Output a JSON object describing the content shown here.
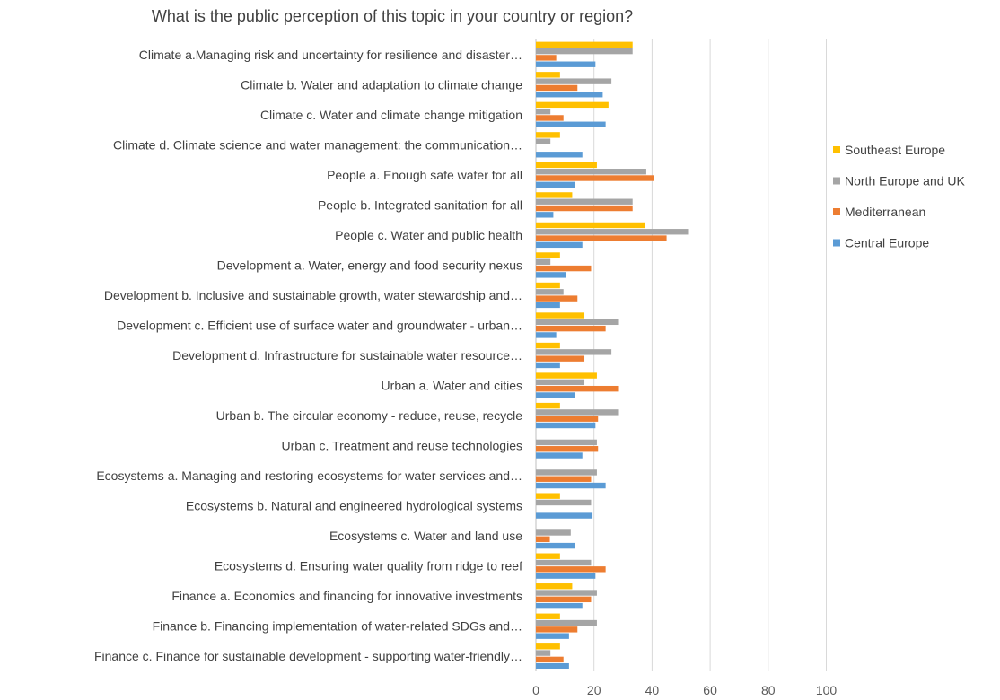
{
  "chart_data": {
    "type": "bar",
    "orientation": "horizontal",
    "title": "What is the public perception of this topic in your country or region?",
    "xlabel": "",
    "ylabel": "",
    "xlim": [
      0,
      100
    ],
    "x_ticks": [
      "0",
      "20",
      "40",
      "60",
      "80",
      "100"
    ],
    "grid": "vertical",
    "legend_position": "right",
    "categories": [
      "Climate a.Managing risk and uncertainty for resilience and disaster…",
      "Climate b. Water and adaptation to climate change",
      "Climate c. Water and climate change mitigation",
      "Climate d. Climate science and water management: the communication…",
      "People a. Enough safe water for all",
      "People b. Integrated sanitation for all",
      "People c. Water and public health",
      "Development a.  Water, energy and food security nexus",
      "Development b. Inclusive and sustainable growth, water stewardship and…",
      "Development c. Efficient use of surface water and groundwater - urban…",
      "Development d. Infrastructure for sustainable water resource…",
      "Urban a. Water and cities",
      "Urban b. The circular economy - reduce, reuse, recycle",
      "Urban c. Treatment and reuse technologies",
      "Ecosystems a. Managing and restoring ecosystems for water services and…",
      "Ecosystems b. Natural and engineered hydrological systems",
      "Ecosystems c. Water and land use",
      "Ecosystems d. Ensuring water quality from ridge to reef",
      "Finance a. Economics and financing for innovative investments",
      "Finance b. Financing implementation of water-related SDGs and…",
      "Finance c. Finance for sustainable development - supporting water-friendly…"
    ],
    "series": [
      {
        "name": "Southeast Europe",
        "color": "#FFC000",
        "values": [
          33.3,
          8.3,
          25,
          8.3,
          21,
          12.5,
          37.5,
          8.3,
          8.3,
          16.7,
          8.3,
          21,
          8.3,
          0,
          0,
          8.3,
          0,
          8.3,
          12.5,
          8.3,
          8.3
        ]
      },
      {
        "name": "North Europe and UK",
        "color": "#A5A5A5",
        "values": [
          33.3,
          26,
          5,
          5,
          38,
          33.3,
          52.4,
          5,
          9.5,
          28.6,
          26,
          16.7,
          28.6,
          21,
          21,
          19,
          12,
          19,
          21,
          21,
          5
        ]
      },
      {
        "name": "Mediterranean",
        "color": "#ED7D31",
        "values": [
          7,
          14.3,
          9.5,
          0,
          40.5,
          33.3,
          45,
          19,
          14.3,
          24,
          16.7,
          28.6,
          21.4,
          21.4,
          19,
          0,
          4.8,
          24,
          19,
          14.3,
          9.5
        ]
      },
      {
        "name": "Central Europe",
        "color": "#5B9BD5",
        "values": [
          20.5,
          23,
          24,
          16,
          13.6,
          6,
          16,
          10.5,
          8.3,
          7,
          8.3,
          13.6,
          20.5,
          16,
          24,
          19.5,
          13.6,
          20.5,
          16,
          11.4,
          11.4
        ]
      }
    ],
    "legend_order": [
      "Southeast Europe",
      "North Europe and UK",
      "Mediterranean",
      "Central Europe"
    ]
  }
}
